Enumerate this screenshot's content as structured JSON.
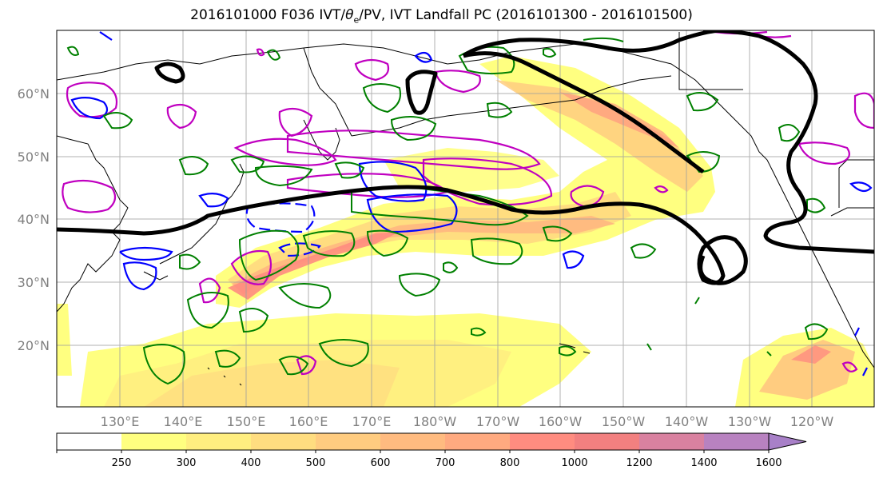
{
  "title": {
    "prefix": "2016101000 F036 IVT/",
    "theta": "θ",
    "sub": "e",
    "suffix": "/PV, IVT Landfall PC (2016101300 - 2016101500)"
  },
  "lat_labels": [
    "60°N",
    "50°N",
    "40°N",
    "30°N",
    "20°N"
  ],
  "lon_labels": [
    "130°E",
    "140°E",
    "150°E",
    "160°E",
    "170°E",
    "180°W",
    "170°W",
    "160°W",
    "150°W",
    "140°W",
    "130°W",
    "120°W"
  ],
  "colorbar": {
    "ticks": [
      "250",
      "300",
      "400",
      "500",
      "600",
      "700",
      "800",
      "1000",
      "1200",
      "1400",
      "1600"
    ],
    "colors": [
      "#ffffff",
      "#ffff80",
      "#ffee80",
      "#ffdd80",
      "#ffcc80",
      "#ffbb80",
      "#ffaa80",
      "#ff8c80",
      "#f28080",
      "#d981a0",
      "#b882c0",
      "#a880c8"
    ]
  },
  "legend_colors": {
    "ivt_pc": "#000000",
    "theta_e": "#008000",
    "pv_pos": "#c000c0",
    "pv_neg": "#0000ff"
  }
}
